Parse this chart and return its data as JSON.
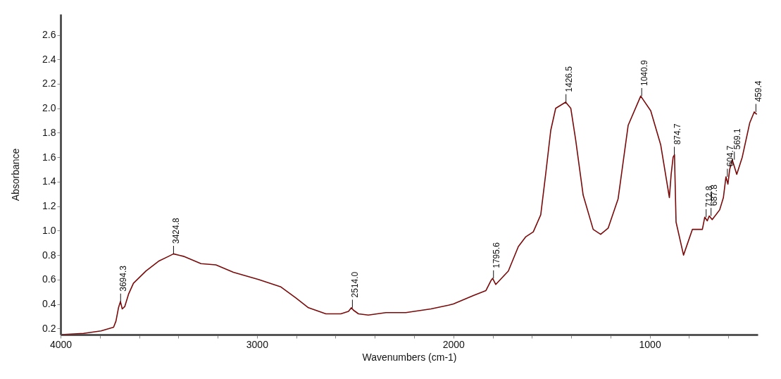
{
  "chart_data": {
    "type": "line",
    "xlabel": "Wavenumbers (cm-1)",
    "ylabel": "Absorbance",
    "x": [
      3997,
      3883,
      3794,
      3730,
      3718,
      3705,
      3695,
      3686,
      3673,
      3654,
      3629,
      3565,
      3501,
      3450,
      3425,
      3374,
      3285,
      3209,
      3120,
      2992,
      2878,
      2802,
      2738,
      2649,
      2573,
      2534,
      2519,
      2509,
      2483,
      2433,
      2343,
      2242,
      2114,
      2025,
      2000,
      1898,
      1834,
      1809,
      1800,
      1784,
      1720,
      1669,
      1631,
      1593,
      1555,
      1530,
      1504,
      1479,
      1428,
      1402,
      1377,
      1339,
      1288,
      1250,
      1212,
      1161,
      1110,
      1046,
      995,
      944,
      900,
      891,
      881,
      874,
      866,
      828,
      783,
      732,
      720,
      707,
      697,
      682,
      644,
      625,
      612,
      602,
      593,
      580,
      557,
      529,
      491,
      468,
      455
    ],
    "series": [
      {
        "color": "#7a0a0a",
        "values": [
          0.15,
          0.16,
          0.18,
          0.21,
          0.26,
          0.37,
          0.42,
          0.36,
          0.38,
          0.48,
          0.57,
          0.67,
          0.75,
          0.79,
          0.81,
          0.79,
          0.73,
          0.72,
          0.66,
          0.6,
          0.54,
          0.45,
          0.37,
          0.32,
          0.32,
          0.34,
          0.37,
          0.35,
          0.32,
          0.31,
          0.33,
          0.33,
          0.36,
          0.39,
          0.4,
          0.47,
          0.51,
          0.59,
          0.61,
          0.56,
          0.67,
          0.87,
          0.95,
          0.99,
          1.13,
          1.46,
          1.82,
          2.0,
          2.05,
          2.0,
          1.74,
          1.29,
          1.01,
          0.97,
          1.02,
          1.26,
          1.86,
          2.1,
          1.98,
          1.7,
          1.27,
          1.46,
          1.6,
          1.62,
          1.07,
          0.8,
          1.01,
          1.01,
          1.11,
          1.08,
          1.12,
          1.09,
          1.17,
          1.27,
          1.44,
          1.38,
          1.5,
          1.58,
          1.46,
          1.6,
          1.88,
          1.97,
          1.95
        ]
      }
    ],
    "xlim": [
      4000,
      450
    ],
    "ylim": [
      0.15,
      2.77
    ],
    "xticks": [
      4000,
      {
        "value": 3800,
        "label": null
      },
      {
        "value": 3600,
        "label": null
      },
      {
        "value": 3400,
        "label": null
      },
      {
        "value": 3200,
        "label": null
      },
      3000,
      {
        "value": 2800,
        "label": null
      },
      {
        "value": 2600,
        "label": null
      },
      {
        "value": 2400,
        "label": null
      },
      {
        "value": 2200,
        "label": null
      },
      2000,
      {
        "value": 1800,
        "label": null
      },
      {
        "value": 1600,
        "label": null
      },
      {
        "value": 1400,
        "label": null
      },
      {
        "value": 1200,
        "label": null
      },
      1000,
      {
        "value": 800,
        "label": null
      },
      {
        "value": 600,
        "label": null
      }
    ],
    "yticks": [
      {
        "value": 0.2,
        "label": "0.2"
      },
      {
        "value": 0.4,
        "label": "0.4"
      },
      {
        "value": 0.6,
        "label": "0.6"
      },
      {
        "value": 0.8,
        "label": "0.8"
      },
      {
        "value": 1.0,
        "label": "1.0"
      },
      {
        "value": 1.2,
        "label": "1.2"
      },
      {
        "value": 1.4,
        "label": "1.4"
      },
      {
        "value": 1.6,
        "label": "1.6"
      },
      {
        "value": 1.8,
        "label": "1.8"
      },
      {
        "value": 2.0,
        "label": "2.0"
      },
      {
        "value": 2.2,
        "label": "2.2"
      },
      {
        "value": 2.4,
        "label": "2.4"
      },
      {
        "value": 2.6,
        "label": "2.6"
      }
    ],
    "grid": false,
    "marker": "none",
    "line_style": "solid",
    "annotations": [
      {
        "text": "3694.3",
        "x": 3694.3,
        "y": 0.42
      },
      {
        "text": "3424.8",
        "x": 3424.8,
        "y": 0.81
      },
      {
        "text": "2514.0",
        "x": 2514.0,
        "y": 0.37
      },
      {
        "text": "1795.6",
        "x": 1795.6,
        "y": 0.61
      },
      {
        "text": "1426.5",
        "x": 1426.5,
        "y": 2.05
      },
      {
        "text": "1040.9",
        "x": 1040.9,
        "y": 2.1
      },
      {
        "text": "874.7",
        "x": 874.7,
        "y": 1.62
      },
      {
        "text": "712.8",
        "x": 712.8,
        "y": 1.11
      },
      {
        "text": "687.8",
        "x": 687.8,
        "y": 1.12
      },
      {
        "text": "604.7",
        "x": 604.7,
        "y": 1.44
      },
      {
        "text": "569.1",
        "x": 569.1,
        "y": 1.58
      },
      {
        "text": "459.4",
        "x": 459.4,
        "y": 1.97
      }
    ]
  }
}
